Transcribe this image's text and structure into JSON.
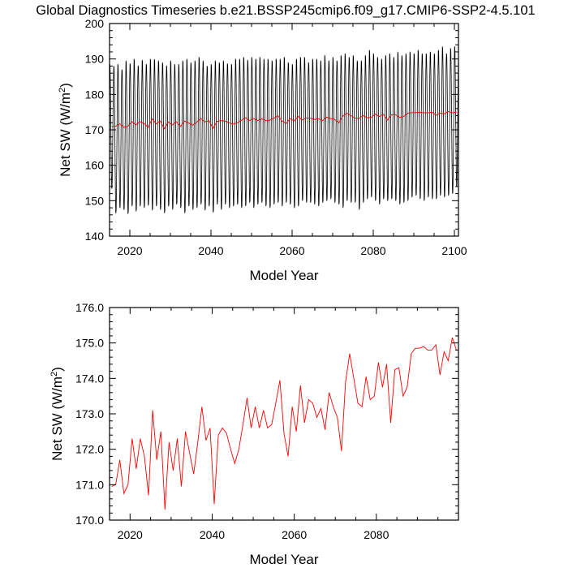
{
  "title": "Global Diagnostics Timeseries b.e21.BSSP245cmip6.f09_g17.CMIP6-SSP2-4.5.101",
  "chart_data": [
    {
      "type": "line",
      "title": "",
      "xlabel": "Model Year",
      "ylabel": "Net SW (W/m",
      "ylabel_sup": "2",
      "ylabel_end": ")",
      "xlim": [
        2015,
        2101
      ],
      "ylim": [
        140,
        200
      ],
      "xticks": [
        2020,
        2040,
        2060,
        2080,
        2100
      ],
      "yticks": [
        140,
        150,
        160,
        170,
        180,
        190,
        200
      ],
      "ytick_labels": [
        "140",
        "150",
        "160",
        "170",
        "180",
        "190",
        "200"
      ],
      "grid": false,
      "legend": "none",
      "series": [
        {
          "kind": "monthly",
          "color": "#000000",
          "start_year": 2015,
          "annual_max": [
            189.0,
            188.5,
            189.0,
            187.5,
            190.0,
            189.2,
            190.5,
            188.6,
            190.2,
            189.0,
            190.5,
            190.4,
            190.0,
            189.5,
            188.6,
            190.0,
            189.0,
            189.0,
            190.0,
            190.5,
            189.5,
            190.0,
            191.0,
            190.0,
            188.5,
            189.0,
            190.0,
            189.5,
            190.0,
            189.2,
            189.0,
            190.5,
            190.5,
            191.0,
            190.2,
            191.0,
            190.5,
            191.0,
            190.5,
            190.5,
            190.0,
            190.5,
            190.5,
            191.0,
            189.5,
            189.0,
            190.5,
            191.0,
            191.0,
            189.5,
            190.5,
            190.5,
            190.0,
            191.5,
            190.0,
            191.0,
            190.0,
            191.5,
            192.0,
            191.0,
            191.5,
            190.0,
            190.0,
            191.5,
            193.0,
            192.0,
            191.0,
            190.5,
            191.5,
            192.0,
            191.0,
            192.5,
            191.5,
            192.0,
            192.5,
            192.0,
            193.0,
            192.0,
            192.0,
            192.5,
            192.0,
            193.0,
            194.0,
            192.0,
            193.5,
            194.0
          ],
          "annual_min": [
            153.0,
            146.0,
            147.5,
            147.0,
            145.8,
            148.0,
            146.5,
            148.0,
            147.5,
            148.2,
            146.8,
            148.0,
            147.0,
            146.0,
            148.0,
            147.0,
            148.5,
            147.5,
            146.0,
            148.0,
            147.0,
            147.5,
            148.5,
            146.8,
            148.0,
            146.2,
            148.5,
            147.0,
            148.5,
            147.5,
            148.0,
            148.5,
            147.5,
            148.0,
            149.0,
            147.5,
            148.5,
            149.0,
            148.0,
            147.5,
            148.5,
            149.0,
            148.0,
            149.0,
            148.5,
            147.5,
            148.0,
            149.5,
            149.0,
            149.0,
            148.5,
            148.0,
            149.0,
            149.5,
            150.0,
            149.0,
            148.5,
            147.5,
            149.5,
            149.0,
            149.0,
            147.0,
            149.0,
            150.0,
            150.5,
            149.5,
            148.5,
            150.0,
            149.5,
            150.0,
            149.5,
            148.5,
            149.0,
            149.5,
            150.5,
            151.0,
            150.0,
            149.5,
            150.5,
            150.0,
            150.0,
            151.0,
            150.5,
            151.0,
            151.5,
            153.5
          ]
        },
        {
          "kind": "annual",
          "color": "#ff0000",
          "x": [
            2015.5,
            2016.5,
            2017.5,
            2018.5,
            2019.5,
            2020.5,
            2021.5,
            2022.5,
            2023.5,
            2024.5,
            2025.5,
            2026.5,
            2027.5,
            2028.5,
            2029.5,
            2030.5,
            2031.5,
            2032.5,
            2033.5,
            2034.5,
            2035.5,
            2036.5,
            2037.5,
            2038.5,
            2039.5,
            2040.5,
            2041.5,
            2042.5,
            2043.5,
            2044.5,
            2045.5,
            2046.5,
            2047.5,
            2048.5,
            2049.5,
            2050.5,
            2051.5,
            2052.5,
            2053.5,
            2054.5,
            2055.5,
            2056.5,
            2057.5,
            2058.5,
            2059.5,
            2060.5,
            2061.5,
            2062.5,
            2063.5,
            2064.5,
            2065.5,
            2066.5,
            2067.5,
            2068.5,
            2069.5,
            2070.5,
            2071.5,
            2072.5,
            2073.5,
            2074.5,
            2075.5,
            2076.5,
            2077.5,
            2078.5,
            2079.5,
            2080.5,
            2081.5,
            2082.5,
            2083.5,
            2084.5,
            2085.5,
            2086.5,
            2087.5,
            2088.5,
            2089.5,
            2090.5,
            2091.5,
            2092.5,
            2093.5,
            2094.5,
            2095.5,
            2096.5,
            2097.5,
            2098.5,
            2099.5,
            2100.5
          ],
          "values": [
            170.95,
            171.0,
            171.7,
            170.75,
            171.0,
            172.3,
            171.45,
            172.3,
            171.8,
            170.7,
            173.1,
            171.7,
            172.5,
            170.3,
            172.2,
            171.4,
            172.3,
            170.95,
            172.5,
            171.9,
            171.3,
            172.2,
            173.2,
            172.25,
            172.6,
            170.45,
            172.4,
            172.6,
            172.45,
            172.0,
            171.6,
            172.0,
            172.7,
            173.45,
            172.6,
            173.2,
            172.6,
            173.1,
            172.6,
            172.7,
            173.3,
            173.95,
            172.45,
            171.8,
            173.2,
            172.5,
            173.8,
            172.75,
            173.4,
            173.3,
            172.9,
            173.15,
            172.55,
            173.6,
            173.2,
            172.9,
            171.95,
            173.9,
            174.7,
            174.0,
            173.3,
            173.2,
            174.05,
            173.4,
            173.5,
            174.45,
            173.75,
            174.4,
            172.75,
            174.25,
            174.3,
            173.5,
            173.75,
            174.7,
            174.85,
            174.85,
            174.9,
            174.8,
            174.8,
            174.95,
            174.1,
            174.75,
            174.5,
            175.15,
            174.8,
            175.0
          ]
        }
      ]
    },
    {
      "type": "line",
      "title": "",
      "xlabel": "Model Year",
      "ylabel": "Net SW (W/m",
      "ylabel_sup": "2",
      "ylabel_end": ")",
      "xlim": [
        2015,
        2100
      ],
      "ylim": [
        170,
        176
      ],
      "xticks": [
        2020,
        2040,
        2060,
        2080
      ],
      "yticks": [
        170,
        171,
        172,
        173,
        174,
        175,
        176
      ],
      "ytick_labels": [
        "170.0",
        "171.0",
        "172.0",
        "173.0",
        "174.0",
        "175.0",
        "176.0"
      ],
      "grid": false,
      "legend": "none",
      "series": [
        {
          "kind": "annual",
          "color": "#ff0000",
          "x": [
            2015.5,
            2016.5,
            2017.5,
            2018.5,
            2019.5,
            2020.5,
            2021.5,
            2022.5,
            2023.5,
            2024.5,
            2025.5,
            2026.5,
            2027.5,
            2028.5,
            2029.5,
            2030.5,
            2031.5,
            2032.5,
            2033.5,
            2034.5,
            2035.5,
            2036.5,
            2037.5,
            2038.5,
            2039.5,
            2040.5,
            2041.5,
            2042.5,
            2043.5,
            2044.5,
            2045.5,
            2046.5,
            2047.5,
            2048.5,
            2049.5,
            2050.5,
            2051.5,
            2052.5,
            2053.5,
            2054.5,
            2055.5,
            2056.5,
            2057.5,
            2058.5,
            2059.5,
            2060.5,
            2061.5,
            2062.5,
            2063.5,
            2064.5,
            2065.5,
            2066.5,
            2067.5,
            2068.5,
            2069.5,
            2070.5,
            2071.5,
            2072.5,
            2073.5,
            2074.5,
            2075.5,
            2076.5,
            2077.5,
            2078.5,
            2079.5,
            2080.5,
            2081.5,
            2082.5,
            2083.5,
            2084.5,
            2085.5,
            2086.5,
            2087.5,
            2088.5,
            2089.5,
            2090.5,
            2091.5,
            2092.5,
            2093.5,
            2094.5,
            2095.5,
            2096.5,
            2097.5,
            2098.5,
            2099.5
          ],
          "values": [
            170.95,
            171.0,
            171.7,
            170.75,
            171.0,
            172.3,
            171.45,
            172.3,
            171.8,
            170.7,
            173.1,
            171.7,
            172.5,
            170.3,
            172.2,
            171.4,
            172.3,
            170.95,
            172.5,
            171.9,
            171.3,
            172.2,
            173.2,
            172.25,
            172.6,
            170.45,
            172.4,
            172.6,
            172.45,
            172.0,
            171.6,
            172.0,
            172.7,
            173.45,
            172.6,
            173.2,
            172.6,
            173.1,
            172.6,
            172.7,
            173.3,
            173.95,
            172.45,
            171.8,
            173.2,
            172.5,
            173.8,
            172.75,
            173.4,
            173.3,
            172.9,
            173.15,
            172.55,
            173.6,
            173.2,
            172.9,
            171.95,
            173.9,
            174.7,
            174.0,
            173.3,
            173.2,
            174.05,
            173.4,
            173.5,
            174.45,
            173.75,
            174.4,
            172.75,
            174.25,
            174.3,
            173.5,
            173.75,
            174.7,
            174.85,
            174.85,
            174.9,
            174.8,
            174.8,
            174.95,
            174.1,
            174.75,
            174.5,
            175.15,
            174.8
          ]
        }
      ]
    }
  ]
}
